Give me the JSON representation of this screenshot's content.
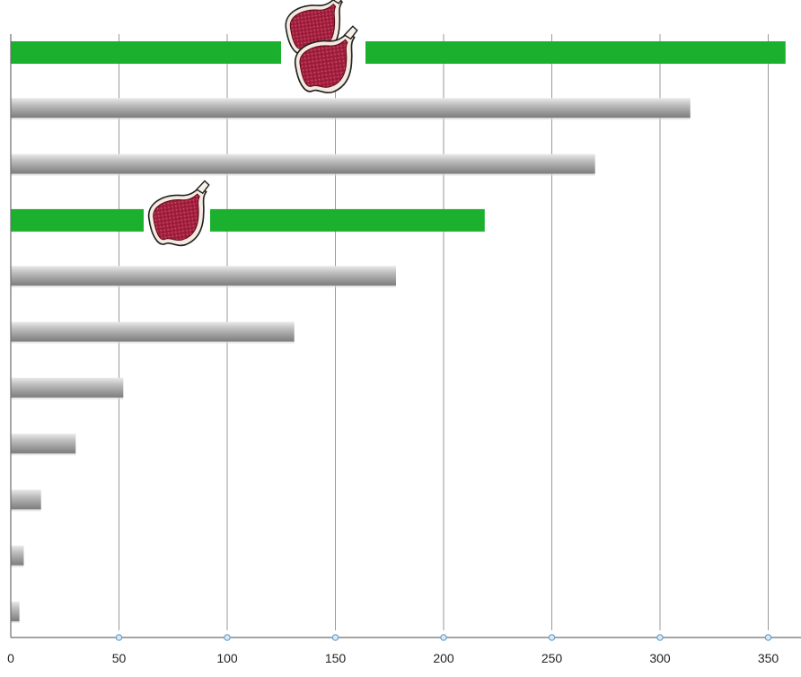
{
  "chart_data": {
    "type": "bar",
    "orientation": "horizontal",
    "title": "",
    "xlabel": "",
    "ylabel": "",
    "xlim": [
      0,
      360
    ],
    "x_ticks": [
      0,
      50,
      100,
      150,
      200,
      250,
      300,
      350
    ],
    "x_tick_labels": [
      "0",
      "50",
      "100",
      "150",
      "200",
      "250",
      "300",
      "350"
    ],
    "grid": "vertical",
    "legend": "none",
    "bars": [
      {
        "value": 358,
        "highlight": true,
        "icon": "steak-icon",
        "icon_count": 2
      },
      {
        "value": 314,
        "highlight": false
      },
      {
        "value": 270,
        "highlight": false
      },
      {
        "value": 219,
        "highlight": true,
        "icon": "steak-icon",
        "icon_count": 1
      },
      {
        "value": 178,
        "highlight": false
      },
      {
        "value": 131,
        "highlight": false
      },
      {
        "value": 52,
        "highlight": false
      },
      {
        "value": 30,
        "highlight": false
      },
      {
        "value": 14,
        "highlight": false
      },
      {
        "value": 6,
        "highlight": false
      },
      {
        "value": 4,
        "highlight": false
      }
    ],
    "colors": {
      "highlight": "#1bb12e",
      "bar_gray": "#a6a6a6",
      "grid": "#9a9a9a",
      "axis": "#6d6d6d",
      "tick_marker": "#6aa0c8",
      "steak_meat": "#a3203e",
      "steak_fat": "#f4eadf"
    }
  }
}
